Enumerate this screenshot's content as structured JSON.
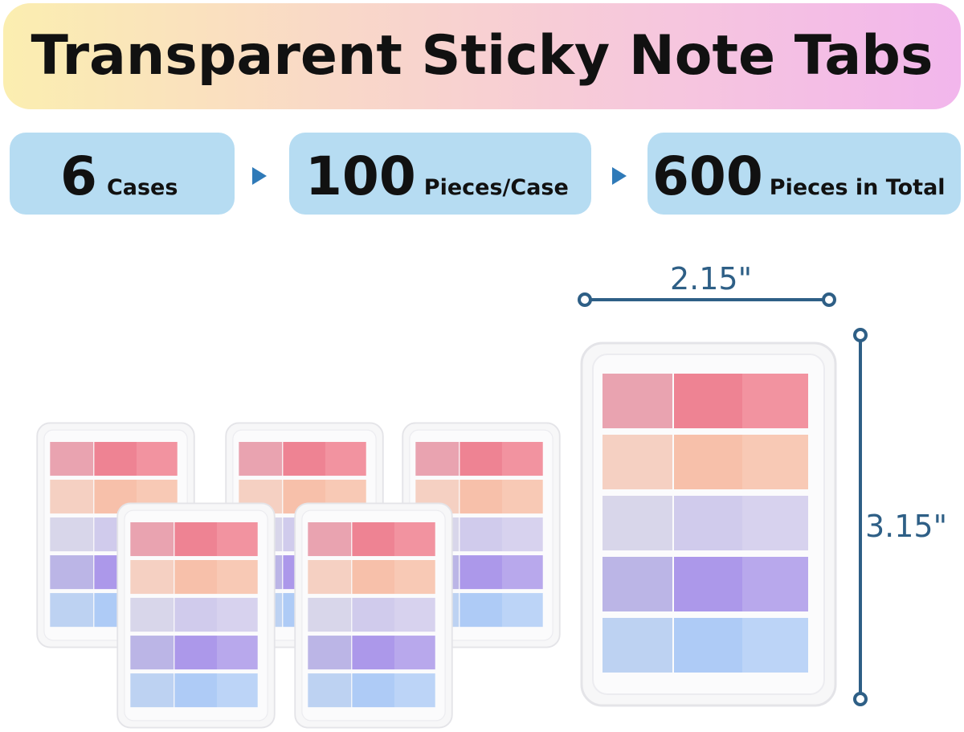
{
  "header": {
    "title": "Transparent Sticky Note Tabs"
  },
  "badges": [
    {
      "number": 6,
      "label": "Cases"
    },
    {
      "number": 100,
      "label": "Pieces/Case"
    },
    {
      "number": 600,
      "label": "Pieces in Total"
    }
  ],
  "dimensions": {
    "width": "2.15\"",
    "height": "3.15\""
  }
}
